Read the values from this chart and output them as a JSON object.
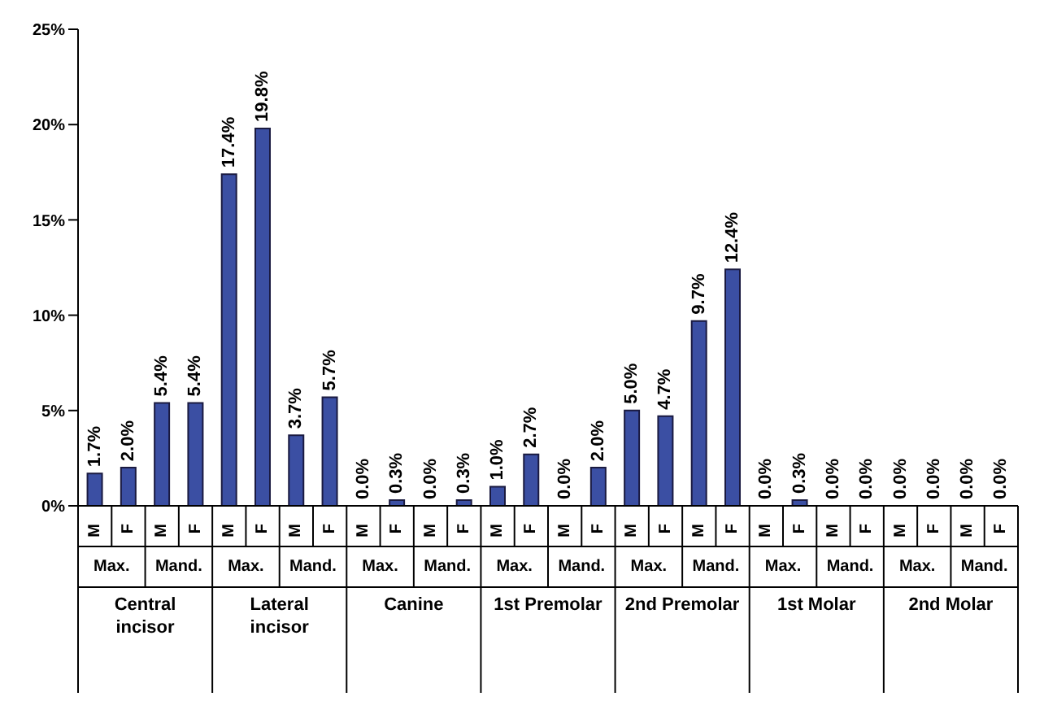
{
  "chart_data": {
    "type": "bar",
    "categories": [
      "M",
      "F",
      "M",
      "F",
      "M",
      "F",
      "M",
      "F",
      "M",
      "F",
      "M",
      "F",
      "M",
      "F",
      "M",
      "F",
      "M",
      "F",
      "M",
      "F",
      "M",
      "F",
      "M",
      "F",
      "M",
      "F",
      "M",
      "F"
    ],
    "values": [
      1.7,
      2.0,
      5.4,
      5.4,
      17.4,
      19.8,
      3.7,
      5.7,
      0.0,
      0.3,
      0.0,
      0.3,
      1.0,
      2.7,
      0.0,
      2.0,
      5.0,
      4.7,
      9.7,
      12.4,
      0.0,
      0.3,
      0.0,
      0.0,
      0.0,
      0.0,
      0.0,
      0.0
    ],
    "value_labels": [
      "1.7%",
      "2.0%",
      "5.4%",
      "5.4%",
      "17.4%",
      "19.8%",
      "3.7%",
      "5.7%",
      "0.0%",
      "0.3%",
      "0.0%",
      "0.3%",
      "1.0%",
      "2.7%",
      "0.0%",
      "2.0%",
      "5.0%",
      "4.7%",
      "9.7%",
      "12.4%",
      "0.0%",
      "0.3%",
      "0.0%",
      "0.0%",
      "0.0%",
      "0.0%",
      "0.0%",
      "0.0%"
    ],
    "color": "#3b4fa3",
    "ylim": [
      0,
      25
    ],
    "yticks": [
      {
        "value": 0,
        "label": "0%"
      },
      {
        "value": 5,
        "label": "5%"
      },
      {
        "value": 10,
        "label": "10%"
      },
      {
        "value": 15,
        "label": "15%"
      },
      {
        "value": 20,
        "label": "20%"
      },
      {
        "value": 25,
        "label": "25%"
      }
    ],
    "grid": false,
    "annotations": [
      "Max.",
      "Mand.",
      "Max.",
      "Mand.",
      "Max.",
      "Mand.",
      "Max.",
      "Mand.",
      "Max.",
      "Mand.",
      "Max.",
      "Mand.",
      "Max.",
      "Mand.",
      "Central incisor",
      "Lateral incisor",
      "Canine",
      "1st Premolar",
      "2nd Premolar",
      "1st Molar",
      "2nd Molar"
    ]
  }
}
